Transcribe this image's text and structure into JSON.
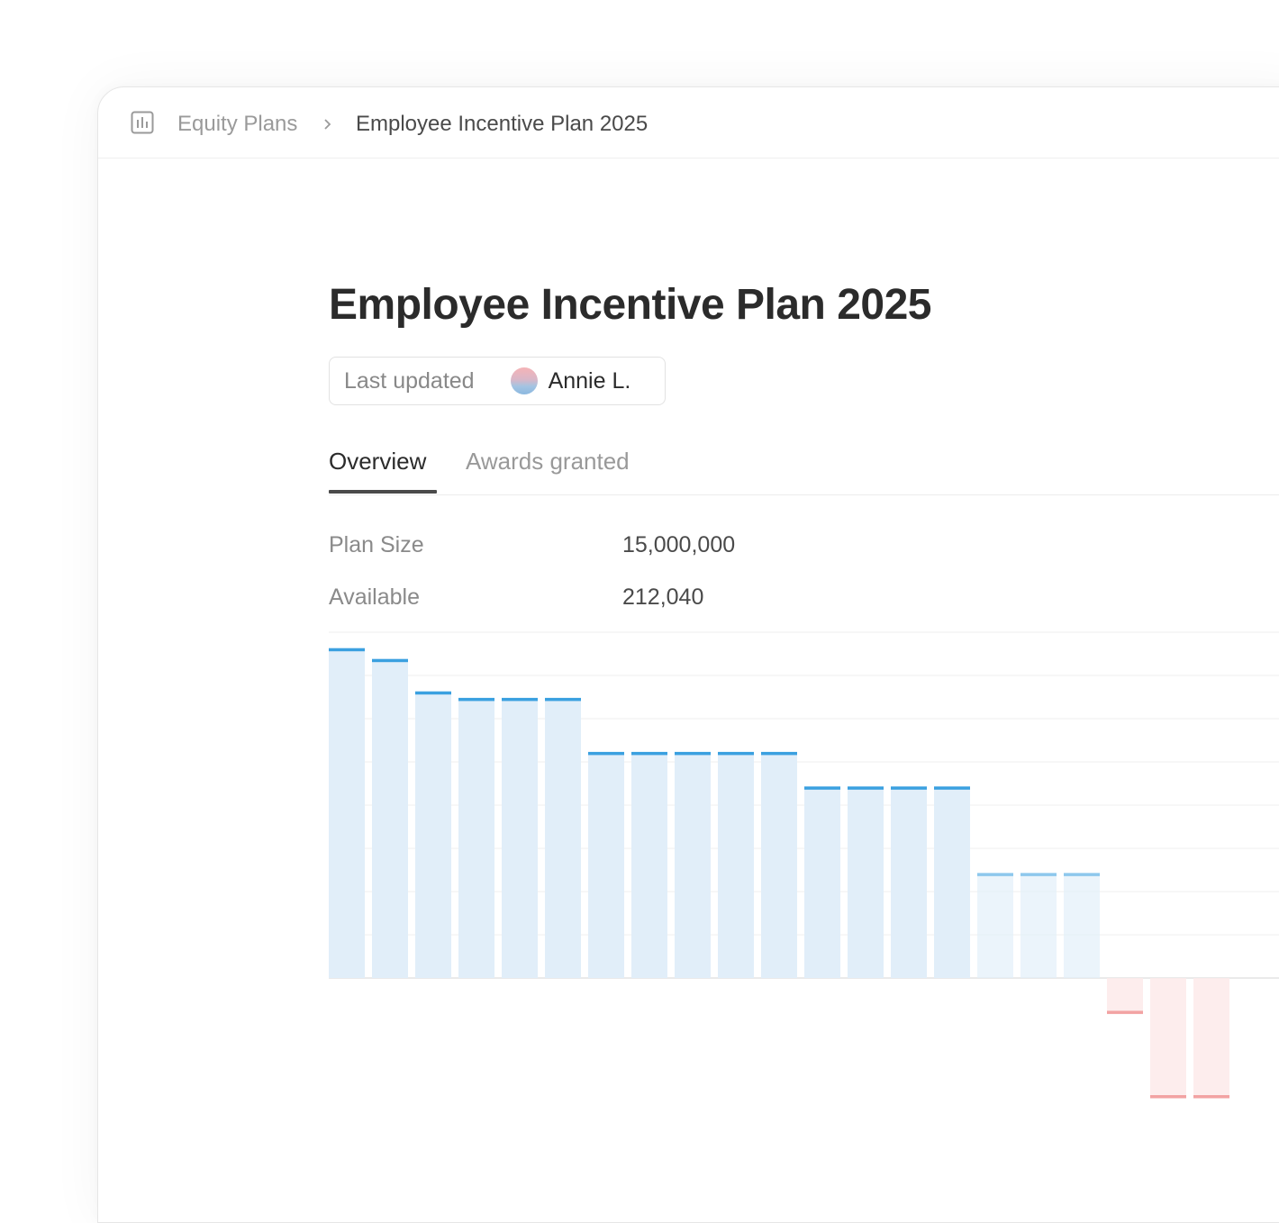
{
  "breadcrumb": {
    "root_label": "Equity Plans",
    "root_icon": "bar-chart-icon",
    "separator_icon": "chevron-right-icon",
    "current_label": "Employee Incentive Plan 2025"
  },
  "page": {
    "title": "Employee Incentive Plan 2025"
  },
  "last_updated": {
    "label": "Last updated",
    "user_name": "Annie L."
  },
  "tabs": [
    {
      "label": "Overview",
      "active": true
    },
    {
      "label": "Awards granted",
      "active": false
    }
  ],
  "stats": {
    "plan_size_label": "Plan Size",
    "plan_size_value": "15,000,000",
    "available_label": "Available",
    "available_value": "212,040"
  },
  "colors": {
    "positive_fill": "#e1eef9",
    "positive_cap": "#3aa0e0",
    "negative_fill": "#fdeaea",
    "negative_cap": "#f2a3a3",
    "grid": "#efefef"
  },
  "chart_data": {
    "type": "bar",
    "values": [
      7.6,
      7.35,
      6.6,
      6.45,
      6.45,
      6.45,
      5.2,
      5.2,
      5.2,
      5.2,
      5.2,
      4.4,
      4.4,
      4.4,
      4.4,
      2.4,
      2.4,
      2.4,
      -0.8,
      -2.75,
      -2.75
    ],
    "ylim": [
      -3,
      8
    ],
    "grid": true
  }
}
